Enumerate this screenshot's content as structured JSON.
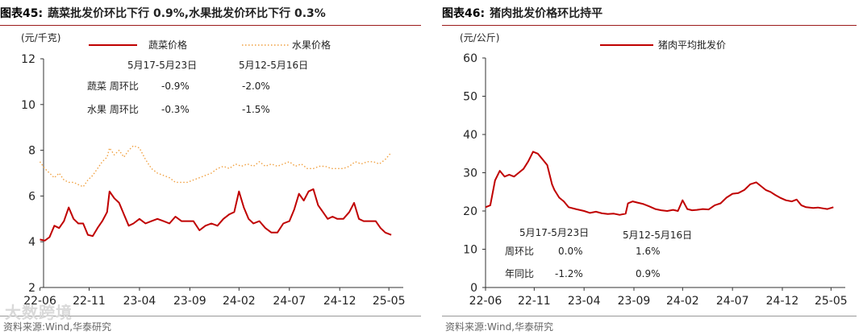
{
  "panels": [
    {
      "figure_label": "图表45:",
      "figure_title": "蔬菜批发价环比下行 0.9%,水果批发价环比下行 0.3%",
      "source": "资料来源:Wind,华泰研究",
      "unit": "(元/千克)",
      "annotation": {
        "periods": [
          "5月17-5月23日",
          "5月12-5月16日"
        ],
        "rows": [
          {
            "label": "蔬菜  周环比",
            "values": [
              "-0.9%",
              "-2.0%"
            ]
          },
          {
            "label": "水果  周环比",
            "values": [
              "-0.3%",
              "-1.5%"
            ]
          }
        ]
      },
      "colors": {
        "vegetable": "#c00000",
        "fruit": "#f0a040"
      }
    },
    {
      "figure_label": "图表46:",
      "figure_title": "猪肉批发价格环比持平",
      "source": "资料来源:Wind,华泰研究",
      "unit": "(元/公斤)",
      "annotation": {
        "periods": [
          "5月17-5月23日",
          "5月12-5月16日"
        ],
        "rows": [
          {
            "label": "周环比",
            "values": [
              "0.0%",
              "1.6%"
            ]
          },
          {
            "label": "年同比",
            "values": [
              "-1.2%",
              "0.9%"
            ]
          }
        ]
      },
      "colors": {
        "pork": "#c00000"
      }
    }
  ],
  "watermark": "大数跨境",
  "chart_data": [
    {
      "type": "line",
      "title": "蔬菜批发价环比下行 0.9%,水果批发价环比下行 0.3%",
      "ylabel": "(元/千克)",
      "ylim": [
        2,
        12
      ],
      "yticks": [
        2,
        4,
        6,
        8,
        10,
        12
      ],
      "xlim": [
        2022.45,
        2025.45
      ],
      "xticks": [
        "22-06",
        "22-11",
        "23-04",
        "23-09",
        "24-02",
        "24-07",
        "24-12",
        "25-05"
      ],
      "xtick_positions": [
        2022.42,
        2022.83,
        2023.25,
        2023.67,
        2024.08,
        2024.5,
        2024.92,
        2025.33
      ],
      "grid": false,
      "legend": "top",
      "series": [
        {
          "name": "蔬菜价格",
          "style": "solid",
          "points": [
            [
              2022.42,
              4.1
            ],
            [
              2022.46,
              4.05
            ],
            [
              2022.5,
              4.2
            ],
            [
              2022.54,
              4.7
            ],
            [
              2022.58,
              4.6
            ],
            [
              2022.62,
              4.9
            ],
            [
              2022.66,
              5.5
            ],
            [
              2022.7,
              5.0
            ],
            [
              2022.74,
              4.8
            ],
            [
              2022.78,
              4.8
            ],
            [
              2022.82,
              4.3
            ],
            [
              2022.86,
              4.25
            ],
            [
              2022.9,
              4.6
            ],
            [
              2022.94,
              4.9
            ],
            [
              2022.98,
              5.3
            ],
            [
              2023.0,
              6.2
            ],
            [
              2023.04,
              5.9
            ],
            [
              2023.08,
              5.7
            ],
            [
              2023.12,
              5.2
            ],
            [
              2023.16,
              4.7
            ],
            [
              2023.2,
              4.8
            ],
            [
              2023.25,
              5.0
            ],
            [
              2023.3,
              4.8
            ],
            [
              2023.35,
              4.9
            ],
            [
              2023.4,
              5.0
            ],
            [
              2023.45,
              4.9
            ],
            [
              2023.5,
              4.8
            ],
            [
              2023.55,
              5.1
            ],
            [
              2023.6,
              4.9
            ],
            [
              2023.65,
              4.9
            ],
            [
              2023.7,
              4.9
            ],
            [
              2023.75,
              4.5
            ],
            [
              2023.8,
              4.7
            ],
            [
              2023.85,
              4.8
            ],
            [
              2023.9,
              4.7
            ],
            [
              2023.95,
              5.0
            ],
            [
              2024.0,
              5.2
            ],
            [
              2024.04,
              5.3
            ],
            [
              2024.08,
              6.2
            ],
            [
              2024.12,
              5.5
            ],
            [
              2024.16,
              5.0
            ],
            [
              2024.2,
              4.8
            ],
            [
              2024.25,
              4.9
            ],
            [
              2024.3,
              4.6
            ],
            [
              2024.35,
              4.4
            ],
            [
              2024.4,
              4.4
            ],
            [
              2024.45,
              4.8
            ],
            [
              2024.5,
              4.9
            ],
            [
              2024.54,
              5.4
            ],
            [
              2024.58,
              6.1
            ],
            [
              2024.62,
              5.8
            ],
            [
              2024.66,
              6.2
            ],
            [
              2024.7,
              6.3
            ],
            [
              2024.74,
              5.6
            ],
            [
              2024.78,
              5.3
            ],
            [
              2024.82,
              5.0
            ],
            [
              2024.86,
              5.1
            ],
            [
              2024.9,
              5.0
            ],
            [
              2024.95,
              5.0
            ],
            [
              2025.0,
              5.3
            ],
            [
              2025.04,
              5.7
            ],
            [
              2025.08,
              5.0
            ],
            [
              2025.12,
              4.9
            ],
            [
              2025.18,
              4.9
            ],
            [
              2025.22,
              4.9
            ],
            [
              2025.26,
              4.6
            ],
            [
              2025.3,
              4.4
            ],
            [
              2025.35,
              4.3
            ]
          ]
        },
        {
          "name": "水果价格",
          "style": "dotted",
          "points": [
            [
              2022.42,
              7.5
            ],
            [
              2022.46,
              7.2
            ],
            [
              2022.5,
              7.0
            ],
            [
              2022.54,
              6.8
            ],
            [
              2022.58,
              7.0
            ],
            [
              2022.62,
              6.7
            ],
            [
              2022.66,
              6.6
            ],
            [
              2022.7,
              6.6
            ],
            [
              2022.74,
              6.5
            ],
            [
              2022.78,
              6.4
            ],
            [
              2022.82,
              6.7
            ],
            [
              2022.86,
              6.9
            ],
            [
              2022.9,
              7.2
            ],
            [
              2022.94,
              7.5
            ],
            [
              2022.98,
              7.7
            ],
            [
              2023.0,
              8.1
            ],
            [
              2023.04,
              7.8
            ],
            [
              2023.08,
              8.0
            ],
            [
              2023.12,
              7.7
            ],
            [
              2023.16,
              8.0
            ],
            [
              2023.2,
              8.2
            ],
            [
              2023.25,
              8.1
            ],
            [
              2023.3,
              7.6
            ],
            [
              2023.35,
              7.2
            ],
            [
              2023.4,
              7.0
            ],
            [
              2023.45,
              6.9
            ],
            [
              2023.5,
              6.8
            ],
            [
              2023.55,
              6.6
            ],
            [
              2023.6,
              6.6
            ],
            [
              2023.65,
              6.6
            ],
            [
              2023.7,
              6.7
            ],
            [
              2023.75,
              6.8
            ],
            [
              2023.8,
              6.9
            ],
            [
              2023.85,
              7.0
            ],
            [
              2023.9,
              7.2
            ],
            [
              2023.95,
              7.3
            ],
            [
              2024.0,
              7.2
            ],
            [
              2024.05,
              7.4
            ],
            [
              2024.1,
              7.3
            ],
            [
              2024.15,
              7.4
            ],
            [
              2024.2,
              7.3
            ],
            [
              2024.25,
              7.5
            ],
            [
              2024.3,
              7.3
            ],
            [
              2024.35,
              7.4
            ],
            [
              2024.4,
              7.3
            ],
            [
              2024.45,
              7.4
            ],
            [
              2024.5,
              7.5
            ],
            [
              2024.55,
              7.3
            ],
            [
              2024.6,
              7.4
            ],
            [
              2024.65,
              7.2
            ],
            [
              2024.7,
              7.2
            ],
            [
              2024.75,
              7.3
            ],
            [
              2024.8,
              7.3
            ],
            [
              2024.85,
              7.2
            ],
            [
              2024.9,
              7.2
            ],
            [
              2024.95,
              7.2
            ],
            [
              2025.0,
              7.3
            ],
            [
              2025.05,
              7.5
            ],
            [
              2025.1,
              7.4
            ],
            [
              2025.15,
              7.5
            ],
            [
              2025.2,
              7.5
            ],
            [
              2025.25,
              7.4
            ],
            [
              2025.3,
              7.6
            ],
            [
              2025.35,
              7.9
            ]
          ]
        }
      ]
    },
    {
      "type": "line",
      "title": "猪肉批发价格环比持平",
      "ylabel": "(元/公斤)",
      "ylim": [
        0,
        60
      ],
      "yticks": [
        0,
        10,
        20,
        30,
        40,
        50,
        60
      ],
      "xlim": [
        2022.42,
        2025.45
      ],
      "xticks": [
        "22-06",
        "22-11",
        "23-04",
        "23-09",
        "24-02",
        "24-07",
        "24-12",
        "25-05"
      ],
      "xtick_positions": [
        2022.42,
        2022.83,
        2023.25,
        2023.67,
        2024.08,
        2024.5,
        2024.92,
        2025.33
      ],
      "grid": false,
      "legend": "top",
      "series": [
        {
          "name": "猪肉平均批发价",
          "style": "solid",
          "points": [
            [
              2022.42,
              21.0
            ],
            [
              2022.46,
              21.5
            ],
            [
              2022.5,
              28.0
            ],
            [
              2022.54,
              30.5
            ],
            [
              2022.58,
              29.0
            ],
            [
              2022.62,
              29.5
            ],
            [
              2022.66,
              29.0
            ],
            [
              2022.7,
              30.0
            ],
            [
              2022.74,
              31.0
            ],
            [
              2022.78,
              33.0
            ],
            [
              2022.82,
              35.5
            ],
            [
              2022.86,
              35.0
            ],
            [
              2022.9,
              33.5
            ],
            [
              2022.94,
              32.0
            ],
            [
              2022.98,
              27.0
            ],
            [
              2023.0,
              25.5
            ],
            [
              2023.04,
              23.5
            ],
            [
              2023.08,
              22.5
            ],
            [
              2023.12,
              21.0
            ],
            [
              2023.18,
              20.5
            ],
            [
              2023.25,
              20.0
            ],
            [
              2023.3,
              19.5
            ],
            [
              2023.35,
              19.8
            ],
            [
              2023.4,
              19.4
            ],
            [
              2023.45,
              19.2
            ],
            [
              2023.5,
              19.3
            ],
            [
              2023.55,
              19.0
            ],
            [
              2023.6,
              19.3
            ],
            [
              2023.62,
              22.0
            ],
            [
              2023.66,
              22.5
            ],
            [
              2023.7,
              22.2
            ],
            [
              2023.75,
              21.8
            ],
            [
              2023.8,
              21.2
            ],
            [
              2023.85,
              20.5
            ],
            [
              2023.9,
              20.2
            ],
            [
              2023.95,
              20.0
            ],
            [
              2024.0,
              20.3
            ],
            [
              2024.04,
              20.0
            ],
            [
              2024.08,
              22.8
            ],
            [
              2024.12,
              20.5
            ],
            [
              2024.16,
              20.2
            ],
            [
              2024.2,
              20.3
            ],
            [
              2024.25,
              20.5
            ],
            [
              2024.3,
              20.4
            ],
            [
              2024.35,
              21.5
            ],
            [
              2024.4,
              22.0
            ],
            [
              2024.45,
              23.5
            ],
            [
              2024.5,
              24.5
            ],
            [
              2024.55,
              24.7
            ],
            [
              2024.6,
              25.5
            ],
            [
              2024.65,
              27.0
            ],
            [
              2024.7,
              27.5
            ],
            [
              2024.74,
              26.5
            ],
            [
              2024.78,
              25.5
            ],
            [
              2024.82,
              25.0
            ],
            [
              2024.86,
              24.2
            ],
            [
              2024.9,
              23.5
            ],
            [
              2024.95,
              22.8
            ],
            [
              2025.0,
              22.5
            ],
            [
              2025.04,
              23.0
            ],
            [
              2025.08,
              21.5
            ],
            [
              2025.12,
              21.0
            ],
            [
              2025.18,
              20.8
            ],
            [
              2025.22,
              20.9
            ],
            [
              2025.26,
              20.7
            ],
            [
              2025.3,
              20.5
            ],
            [
              2025.35,
              21.0
            ]
          ]
        }
      ]
    }
  ]
}
